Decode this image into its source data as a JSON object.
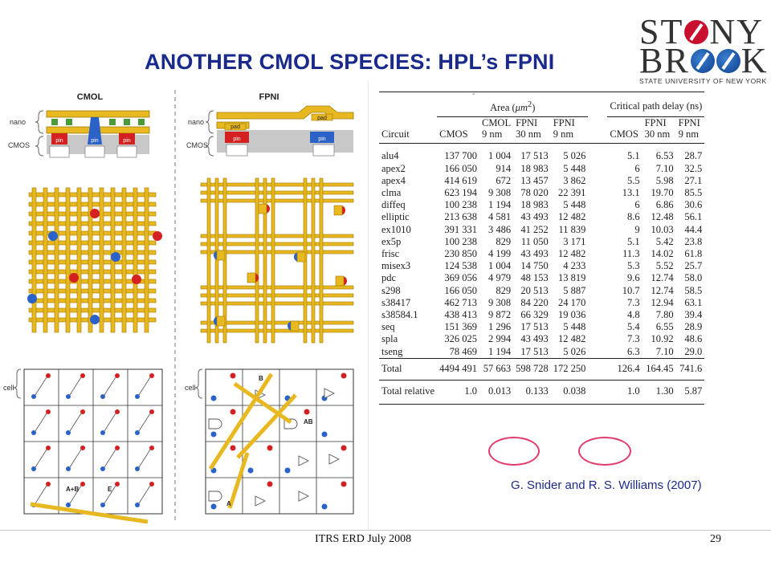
{
  "title": "ANOTHER CMOL SPECIES: HPL’s FPNI",
  "logo": {
    "line1": "ST",
    "line1_end": "NY",
    "line2": "BR",
    "line2_end": "K",
    "subtitle": "STATE UNIVERSITY OF NEW YORK"
  },
  "figure": {
    "cmol_heading": "CMOL",
    "fpni_heading": "FPNI",
    "cmol_nano": "nano",
    "cmol_cmos": "CMOS",
    "fpni_nano": "nano",
    "fpni_cmos": "CMOS",
    "pin": "pin",
    "pad": "pad",
    "cmol_cell": "cell",
    "fpni_cell": "cell",
    "cmol_labels": {
      "ab": "A+B",
      "e": "E",
      "a": "A",
      "b": "B"
    },
    "fpni_labels": {
      "b": "B",
      "ab": "AB",
      "a": "A"
    }
  },
  "table": {
    "mark": "-",
    "header": {
      "area": "Area (",
      "area_unit": "μm",
      "area_close": ")",
      "delay": "Critical path delay (ns)",
      "circuit": "Circuit",
      "cmos": "CMOS",
      "cmol": "CMOL",
      "cmol_nm": "9 nm",
      "fpni30": "FPNI",
      "fpni30_nm": "30 nm",
      "fpni9": "FPNI",
      "fpni9_nm": "9 nm",
      "d_cmos": "CMOS",
      "d_fpni30": "FPNI",
      "d_fpni30_nm": "30 nm",
      "d_fpni9": "FPNI",
      "d_fpni9_nm": "9 nm"
    },
    "rows": [
      [
        "alu4",
        "137 700",
        "1 004",
        "17 513",
        "5 026",
        "5.1",
        "6.53",
        "28.7"
      ],
      [
        "apex2",
        "166 050",
        "914",
        "18 983",
        "5 448",
        "6",
        "7.10",
        "32.5"
      ],
      [
        "apex4",
        "414 619",
        "672",
        "13 457",
        "3 862",
        "5.5",
        "5.98",
        "27.1"
      ],
      [
        "clma",
        "623 194",
        "9 308",
        "78 020",
        "22 391",
        "13.1",
        "19.70",
        "85.5"
      ],
      [
        "diffeq",
        "100 238",
        "1 194",
        "18 983",
        "5 448",
        "6",
        "6.86",
        "30.6"
      ],
      [
        "elliptic",
        "213 638",
        "4 581",
        "43 493",
        "12 482",
        "8.6",
        "12.48",
        "56.1"
      ],
      [
        "ex1010",
        "391 331",
        "3 486",
        "41 252",
        "11 839",
        "9",
        "10.03",
        "44.4"
      ],
      [
        "ex5p",
        "100 238",
        "829",
        "11 050",
        "3 171",
        "5.1",
        "5.42",
        "23.8"
      ],
      [
        "frisc",
        "230 850",
        "4 199",
        "43 493",
        "12 482",
        "11.3",
        "14.02",
        "61.8"
      ],
      [
        "misex3",
        "124 538",
        "1 004",
        "14 750",
        "4 233",
        "5.3",
        "5.52",
        "25.7"
      ],
      [
        "pdc",
        "369 056",
        "4 979",
        "48 153",
        "13 819",
        "9.6",
        "12.74",
        "58.0"
      ],
      [
        "s298",
        "166 050",
        "829",
        "20 513",
        "5 887",
        "10.7",
        "12.74",
        "58.5"
      ],
      [
        "s38417",
        "462 713",
        "9 308",
        "84 220",
        "24 170",
        "7.3",
        "12.94",
        "63.1"
      ],
      [
        "s38584.1",
        "438 413",
        "9 872",
        "66 329",
        "19 036",
        "4.8",
        "7.80",
        "39.4"
      ],
      [
        "seq",
        "151 369",
        "1 296",
        "17 513",
        "5 448",
        "5.4",
        "6.55",
        "28.9"
      ],
      [
        "spla",
        "326 025",
        "2 994",
        "43 493",
        "12 482",
        "7.3",
        "10.92",
        "48.6"
      ],
      [
        "tseng",
        "78 469",
        "1 194",
        "17 513",
        "5 026",
        "6.3",
        "7.10",
        "29.0"
      ]
    ],
    "total": [
      "Total",
      "4494 491",
      "57 663",
      "598 728",
      "172 250",
      "126.4",
      "164.45",
      "741.6"
    ],
    "relative": [
      "Total relative",
      "1.0",
      "0.013",
      "0.133",
      "0.038",
      "1.0",
      "1.30",
      "5.87"
    ]
  },
  "credit": "G. Snider and R. S. Williams (2007)",
  "footer": "ITRS ERD July 2008",
  "page_number": "29",
  "colors": {
    "title": "#1a2a8c",
    "highlight_circle": "#e23a6a",
    "wire": "#e8b820",
    "pin_red": "#d42020",
    "pin_blue": "#2a62c8"
  }
}
